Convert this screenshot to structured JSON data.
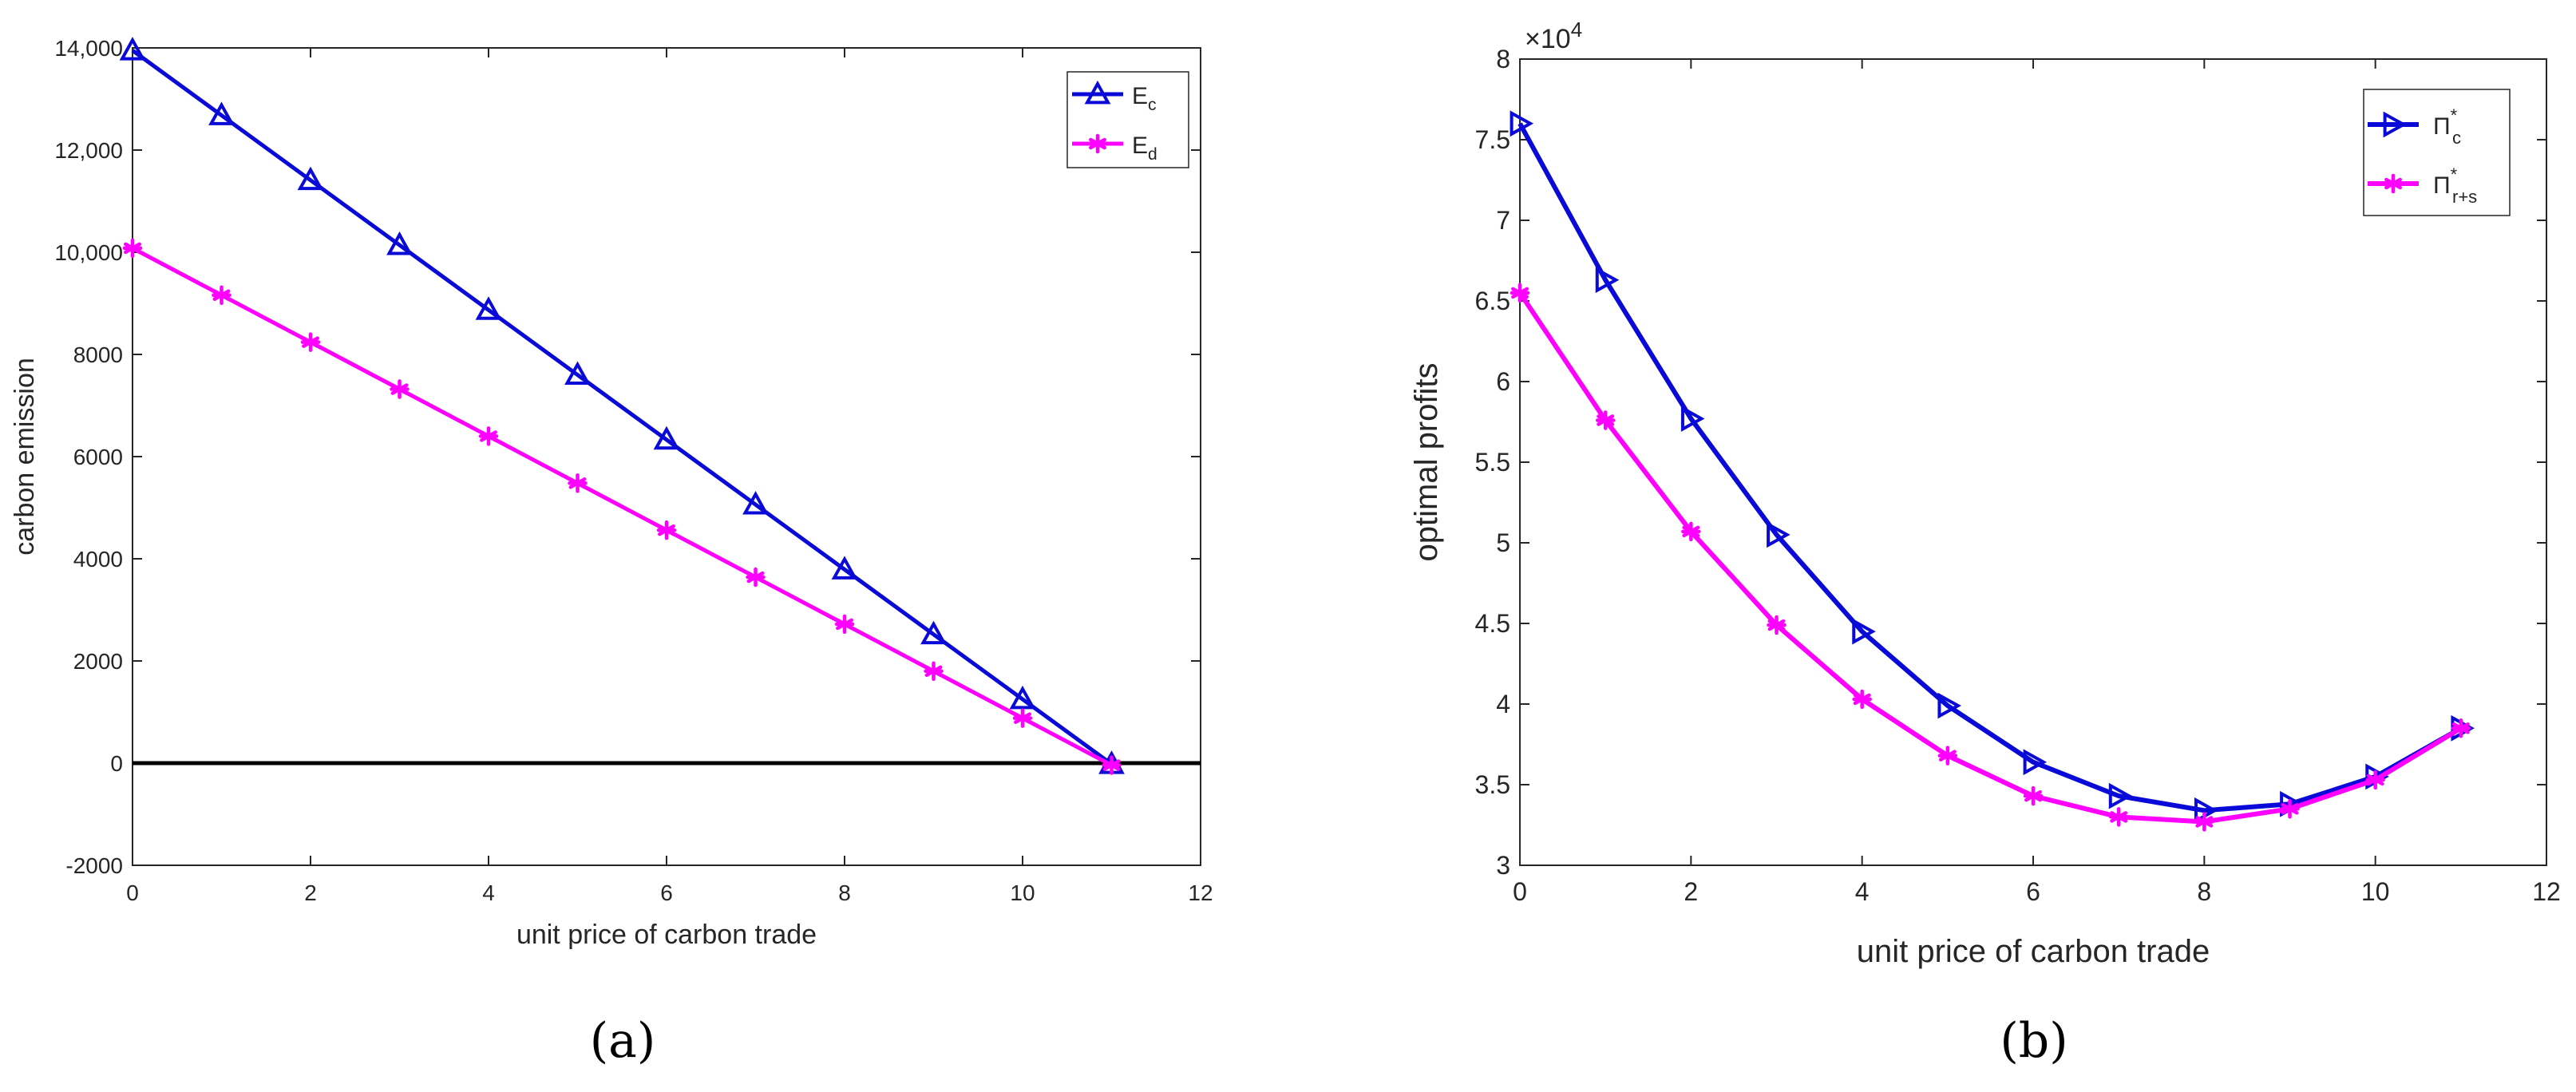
{
  "colors": {
    "series1": "#0a0ad8",
    "series2": "#ff00ff",
    "zero_line": "#000000",
    "axis": "#262626"
  },
  "chart_data": [
    {
      "panel": "a",
      "type": "line",
      "caption": "(a)",
      "xlabel": "unit price of carbon trade",
      "ylabel": "carbon emission",
      "xlim": [
        0,
        12
      ],
      "ylim": [
        -2000,
        14000
      ],
      "xticks": [
        0,
        2,
        4,
        6,
        8,
        10,
        12
      ],
      "yticks": [
        -2000,
        0,
        2000,
        4000,
        6000,
        8000,
        10000,
        12000,
        14000
      ],
      "ytick_labels": [
        "-2000",
        "0",
        "2000",
        "4000",
        "6000",
        "8000",
        "10,000",
        "12,000",
        "14,000"
      ],
      "multiplier_label": "",
      "zero_line": true,
      "legend_position": "top-right",
      "x": [
        0,
        1,
        2,
        3,
        4,
        5,
        6,
        7,
        8,
        9,
        10,
        11
      ],
      "series": [
        {
          "name": "E",
          "subscript": "c",
          "marker": "triangle-up",
          "values": [
            13950,
            12680,
            11410,
            10140,
            8870,
            7600,
            6330,
            5060,
            3790,
            2520,
            1250,
            -20
          ]
        },
        {
          "name": "E",
          "subscript": "d",
          "marker": "asterisk",
          "values": [
            10080,
            9160,
            8240,
            7320,
            6400,
            5480,
            4560,
            3640,
            2720,
            1800,
            880,
            -40
          ]
        }
      ]
    },
    {
      "panel": "b",
      "type": "line",
      "caption": "(b)",
      "xlabel": "unit price of carbon trade",
      "ylabel": "optimal profits",
      "xlim": [
        0,
        12
      ],
      "ylim": [
        30000,
        80000
      ],
      "xticks": [
        0,
        2,
        4,
        6,
        8,
        10,
        12
      ],
      "yticks": [
        30000,
        35000,
        40000,
        45000,
        50000,
        55000,
        60000,
        65000,
        70000,
        75000,
        80000
      ],
      "ytick_labels": [
        "3",
        "3.5",
        "4",
        "4.5",
        "5",
        "5.5",
        "6",
        "6.5",
        "7",
        "7.5",
        "8"
      ],
      "multiplier_label": "×10",
      "multiplier_exp": "4",
      "zero_line": false,
      "legend_position": "top-right",
      "x": [
        0,
        1,
        2,
        3,
        4,
        5,
        6,
        7,
        8,
        9,
        10,
        11
      ],
      "series": [
        {
          "name": "Π",
          "subscript": "c",
          "superscript": "*",
          "marker": "triangle-right",
          "values": [
            76000,
            66300,
            57700,
            50500,
            44500,
            39900,
            36400,
            34300,
            33400,
            33800,
            35500,
            38500
          ]
        },
        {
          "name": "Π",
          "subscript": "r+s",
          "superscript": "*",
          "marker": "asterisk",
          "values": [
            65500,
            57600,
            50700,
            44900,
            40300,
            36800,
            34300,
            33000,
            32700,
            33500,
            35300,
            38500
          ]
        }
      ]
    }
  ]
}
